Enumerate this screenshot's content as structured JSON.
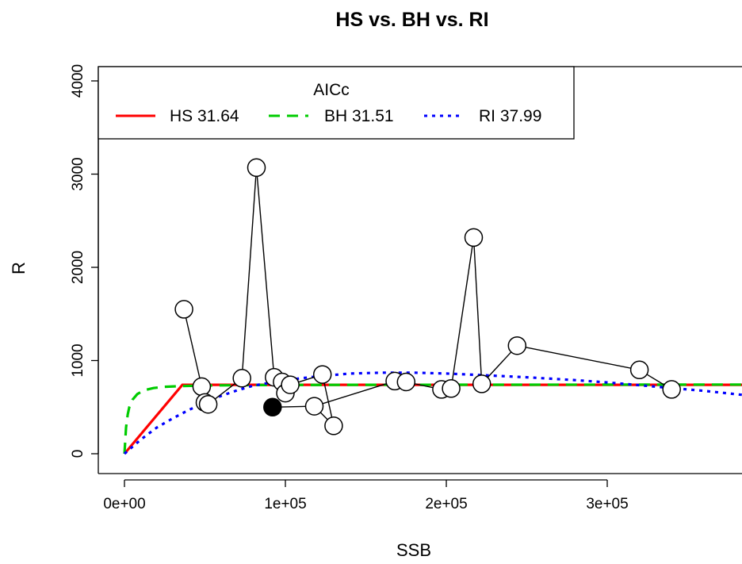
{
  "chart_data": {
    "type": "scatter",
    "title": "HS vs. BH vs. RI",
    "xlabel": "SSB",
    "ylabel": "R",
    "xlim": [
      0,
      385000
    ],
    "ylim": [
      0,
      4000
    ],
    "x_ticks": [
      {
        "value": 0,
        "label": "0e+00"
      },
      {
        "value": 100000,
        "label": "1e+05"
      },
      {
        "value": 200000,
        "label": "2e+05"
      },
      {
        "value": 300000,
        "label": "3e+05"
      }
    ],
    "y_ticks": [
      {
        "value": 0,
        "label": "0"
      },
      {
        "value": 1000,
        "label": "1000"
      },
      {
        "value": 2000,
        "label": "2000"
      },
      {
        "value": 3000,
        "label": "3000"
      },
      {
        "value": 4000,
        "label": "4000"
      }
    ],
    "observations": [
      {
        "x": 37000,
        "y": 1550
      },
      {
        "x": 48000,
        "y": 720
      },
      {
        "x": 50000,
        "y": 550
      },
      {
        "x": 52000,
        "y": 530
      },
      {
        "x": 73000,
        "y": 810
      },
      {
        "x": 82000,
        "y": 3070
      },
      {
        "x": 93000,
        "y": 820
      },
      {
        "x": 98000,
        "y": 770
      },
      {
        "x": 100000,
        "y": 650
      },
      {
        "x": 103000,
        "y": 740
      },
      {
        "x": 123000,
        "y": 850
      },
      {
        "x": 130000,
        "y": 300
      },
      {
        "x": 118000,
        "y": 510
      },
      {
        "x": 168000,
        "y": 780
      },
      {
        "x": 175000,
        "y": 770
      },
      {
        "x": 197000,
        "y": 690
      },
      {
        "x": 203000,
        "y": 700
      },
      {
        "x": 217000,
        "y": 2320
      },
      {
        "x": 222000,
        "y": 750
      },
      {
        "x": 244000,
        "y": 1160
      },
      {
        "x": 320000,
        "y": 900
      },
      {
        "x": 340000,
        "y": 690
      }
    ],
    "connection_order": [
      0,
      1,
      2,
      3,
      4,
      5,
      6,
      7,
      8,
      9,
      10,
      11,
      12,
      13,
      14,
      15,
      16,
      17,
      18,
      19,
      20,
      21
    ],
    "last_point": {
      "x": 92000,
      "y": 500
    },
    "series": [
      {
        "name": "HS 31.64",
        "color": "#ff0000",
        "dash": "solid",
        "x": [
          0,
          36000,
          385000
        ],
        "y": [
          0,
          740,
          740
        ]
      },
      {
        "name": "BH 31.51",
        "color": "#00cc00",
        "dash": "dashed",
        "x": [
          0,
          1000,
          2000,
          3000,
          5000,
          8000,
          12000,
          18000,
          25000,
          35000,
          50000,
          80000,
          150000,
          385000
        ],
        "y": [
          0,
          280,
          420,
          500,
          580,
          640,
          680,
          705,
          718,
          726,
          732,
          737,
          740,
          742
        ]
      },
      {
        "name": "RI 37.99",
        "color": "#0000ff",
        "dash": "dotted",
        "x": [
          0,
          10000,
          20000,
          30000,
          40000,
          50000,
          60000,
          70000,
          80000,
          100000,
          120000,
          140000,
          160000,
          180000,
          200000,
          220000,
          250000,
          280000,
          300000,
          320000,
          340000,
          360000,
          385000
        ],
        "y": [
          0,
          150,
          280,
          380,
          470,
          550,
          620,
          680,
          730,
          790,
          830,
          860,
          870,
          870,
          860,
          845,
          820,
          790,
          765,
          735,
          705,
          675,
          630
        ]
      }
    ],
    "legend": {
      "title": "AICc",
      "placement": "top-left",
      "entries": [
        "HS 31.64",
        "BH 31.51",
        "RI 37.99"
      ]
    }
  }
}
